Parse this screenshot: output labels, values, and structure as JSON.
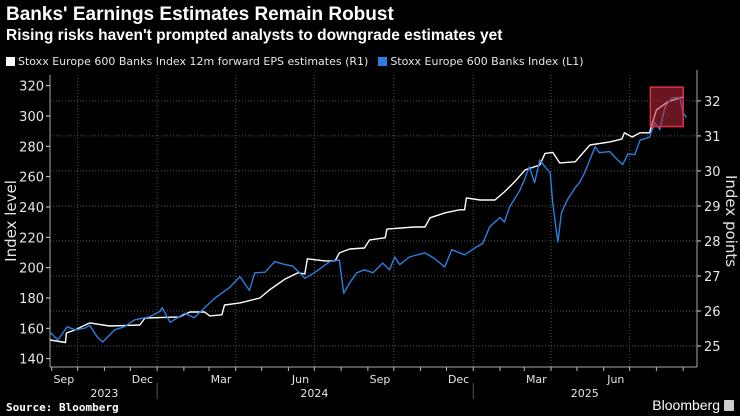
{
  "header": {
    "title": "Banks' Earnings Estimates Remain Robust",
    "subtitle": "Rising risks haven't prompted analysts to downgrade estimates yet"
  },
  "footer": {
    "source": "Source: Bloomberg",
    "brand": "Bloomberg"
  },
  "chart_data": {
    "type": "line",
    "title": "Banks' Earnings Estimates Remain Robust",
    "subtitle": "Rising risks haven't prompted analysts to downgrade estimates yet",
    "ylabel_left": "Index level",
    "ylabel_right": "Index points",
    "x_domain": [
      "2023-08-30",
      "2025-09-17"
    ],
    "ylim_left": [
      134.5,
      327
    ],
    "ylim_right": [
      24.4,
      32.74
    ],
    "left_ticks": [
      140,
      160,
      180,
      200,
      220,
      240,
      260,
      280,
      300,
      320
    ],
    "right_ticks": [
      25,
      26,
      27,
      28,
      29,
      30,
      31,
      32
    ],
    "month_labels": [
      {
        "label": "Sep",
        "date": "2023-09-15"
      },
      {
        "label": "Dec",
        "date": "2023-12-15"
      },
      {
        "label": "Mar",
        "date": "2024-03-15"
      },
      {
        "label": "Jun",
        "date": "2024-06-15"
      },
      {
        "label": "Sep",
        "date": "2024-09-15"
      },
      {
        "label": "Dec",
        "date": "2024-12-15"
      },
      {
        "label": "Mar",
        "date": "2025-03-15"
      },
      {
        "label": "Jun",
        "date": "2025-06-15"
      }
    ],
    "year_labels": [
      {
        "label": "2023",
        "date": "2023-11-01"
      },
      {
        "label": "2024",
        "date": "2024-07-01"
      },
      {
        "label": "2025",
        "date": "2025-05-10"
      }
    ],
    "grid": true,
    "legend_position": "top-left",
    "highlight": {
      "from": "2025-07-25",
      "to": "2025-09-01",
      "left_range": [
        293,
        319
      ],
      "color": "#c0283c"
    },
    "series": [
      {
        "name": "Stoxx Europe 600 Banks Index 12m forward EPS estimates (R1)",
        "axis": "right",
        "color": "#ffffff",
        "points": [
          [
            "2023-08-30",
            25.17
          ],
          [
            "2023-09-17",
            25.1
          ],
          [
            "2023-09-18",
            25.37
          ],
          [
            "2023-09-28",
            25.46
          ],
          [
            "2023-10-15",
            25.66
          ],
          [
            "2023-11-07",
            25.57
          ],
          [
            "2023-12-12",
            25.6
          ],
          [
            "2023-12-18",
            25.8
          ],
          [
            "2024-01-27",
            25.83
          ],
          [
            "2024-02-08",
            25.97
          ],
          [
            "2024-02-25",
            25.97
          ],
          [
            "2024-03-02",
            25.86
          ],
          [
            "2024-03-16",
            25.89
          ],
          [
            "2024-03-19",
            26.17
          ],
          [
            "2024-04-06",
            26.23
          ],
          [
            "2024-04-29",
            26.37
          ],
          [
            "2024-05-10",
            26.6
          ],
          [
            "2024-05-28",
            26.91
          ],
          [
            "2024-06-12",
            27.09
          ],
          [
            "2024-06-20",
            27.06
          ],
          [
            "2024-06-23",
            27.49
          ],
          [
            "2024-07-13",
            27.43
          ],
          [
            "2024-07-25",
            27.43
          ],
          [
            "2024-07-30",
            27.66
          ],
          [
            "2024-08-11",
            27.77
          ],
          [
            "2024-08-28",
            27.8
          ],
          [
            "2024-09-03",
            28.03
          ],
          [
            "2024-09-21",
            28.09
          ],
          [
            "2024-09-23",
            28.34
          ],
          [
            "2024-10-25",
            28.4
          ],
          [
            "2024-11-06",
            28.4
          ],
          [
            "2024-11-12",
            28.66
          ],
          [
            "2024-11-29",
            28.8
          ],
          [
            "2024-12-16",
            28.89
          ],
          [
            "2024-12-22",
            28.89
          ],
          [
            "2024-12-24",
            29.23
          ],
          [
            "2025-01-09",
            29.17
          ],
          [
            "2025-01-26",
            29.17
          ],
          [
            "2025-02-06",
            29.4
          ],
          [
            "2025-02-18",
            29.69
          ],
          [
            "2025-03-02",
            30.03
          ],
          [
            "2025-03-19",
            30.17
          ],
          [
            "2025-03-25",
            30.5
          ],
          [
            "2025-04-03",
            30.53
          ],
          [
            "2025-04-11",
            30.23
          ],
          [
            "2025-04-29",
            30.26
          ],
          [
            "2025-05-16",
            30.74
          ],
          [
            "2025-06-08",
            30.83
          ],
          [
            "2025-06-22",
            30.91
          ],
          [
            "2025-06-25",
            31.09
          ],
          [
            "2025-07-04",
            30.97
          ],
          [
            "2025-07-13",
            31.09
          ],
          [
            "2025-07-24",
            31.09
          ],
          [
            "2025-08-01",
            31.74
          ],
          [
            "2025-08-14",
            31.97
          ],
          [
            "2025-08-28",
            32.09
          ],
          [
            "2025-09-01",
            32.11
          ]
        ]
      },
      {
        "name": "Stoxx Europe 600 Banks Index (L1)",
        "axis": "left",
        "color": "#2a7fde",
        "points": [
          [
            "2023-08-30",
            157.6
          ],
          [
            "2023-09-08",
            152.3
          ],
          [
            "2023-09-19",
            161
          ],
          [
            "2023-09-28",
            159
          ],
          [
            "2023-10-09",
            160
          ],
          [
            "2023-10-15",
            162
          ],
          [
            "2023-10-24",
            154
          ],
          [
            "2023-10-30",
            151
          ],
          [
            "2023-11-13",
            159
          ],
          [
            "2023-11-24",
            161
          ],
          [
            "2023-12-06",
            165.6
          ],
          [
            "2023-12-23",
            167.5
          ],
          [
            "2024-01-04",
            171
          ],
          [
            "2024-01-07",
            173.5
          ],
          [
            "2024-01-16",
            164
          ],
          [
            "2024-02-02",
            170
          ],
          [
            "2024-02-13",
            167
          ],
          [
            "2024-02-25",
            173.5
          ],
          [
            "2024-03-08",
            180
          ],
          [
            "2024-03-25",
            187
          ],
          [
            "2024-04-06",
            194
          ],
          [
            "2024-04-17",
            185
          ],
          [
            "2024-04-23",
            196.6
          ],
          [
            "2024-05-05",
            197
          ],
          [
            "2024-05-16",
            204
          ],
          [
            "2024-05-28",
            202
          ],
          [
            "2024-06-06",
            201
          ],
          [
            "2024-06-14",
            196.6
          ],
          [
            "2024-06-20",
            193
          ],
          [
            "2024-07-01",
            196.6
          ],
          [
            "2024-07-19",
            204
          ],
          [
            "2024-07-30",
            205
          ],
          [
            "2024-08-04",
            183
          ],
          [
            "2024-08-11",
            190
          ],
          [
            "2024-08-19",
            196.6
          ],
          [
            "2024-08-28",
            198.6
          ],
          [
            "2024-09-07",
            196.6
          ],
          [
            "2024-09-18",
            203
          ],
          [
            "2024-09-26",
            198.6
          ],
          [
            "2024-10-02",
            207
          ],
          [
            "2024-10-08",
            202
          ],
          [
            "2024-10-19",
            207
          ],
          [
            "2024-11-06",
            209.8
          ],
          [
            "2024-11-17",
            206
          ],
          [
            "2024-11-29",
            200.5
          ],
          [
            "2024-12-07",
            211.8
          ],
          [
            "2024-12-22",
            208.5
          ],
          [
            "2025-01-03",
            213
          ],
          [
            "2025-01-12",
            216
          ],
          [
            "2025-01-20",
            227
          ],
          [
            "2025-02-01",
            233
          ],
          [
            "2025-02-06",
            230
          ],
          [
            "2025-02-12",
            240
          ],
          [
            "2025-02-24",
            251
          ],
          [
            "2025-03-02",
            259
          ],
          [
            "2025-03-07",
            266.5
          ],
          [
            "2025-03-13",
            256
          ],
          [
            "2025-03-19",
            271
          ],
          [
            "2025-03-25",
            266.5
          ],
          [
            "2025-03-31",
            262.6
          ],
          [
            "2025-04-03",
            242.8
          ],
          [
            "2025-04-07",
            225
          ],
          [
            "2025-04-09",
            217
          ],
          [
            "2025-04-13",
            236
          ],
          [
            "2025-04-20",
            244.8
          ],
          [
            "2025-04-29",
            252.7
          ],
          [
            "2025-05-04",
            256
          ],
          [
            "2025-05-10",
            262.6
          ],
          [
            "2025-05-22",
            279.7
          ],
          [
            "2025-05-27",
            275.8
          ],
          [
            "2025-06-08",
            276.5
          ],
          [
            "2025-06-17",
            271
          ],
          [
            "2025-06-23",
            268
          ],
          [
            "2025-06-29",
            275
          ],
          [
            "2025-07-07",
            274.5
          ],
          [
            "2025-07-13",
            284
          ],
          [
            "2025-07-24",
            286
          ],
          [
            "2025-07-30",
            295.6
          ],
          [
            "2025-08-05",
            291
          ],
          [
            "2025-08-11",
            306
          ],
          [
            "2025-08-19",
            312
          ],
          [
            "2025-08-28",
            312
          ],
          [
            "2025-09-01",
            302
          ],
          [
            "2025-09-05",
            299
          ]
        ]
      }
    ]
  }
}
